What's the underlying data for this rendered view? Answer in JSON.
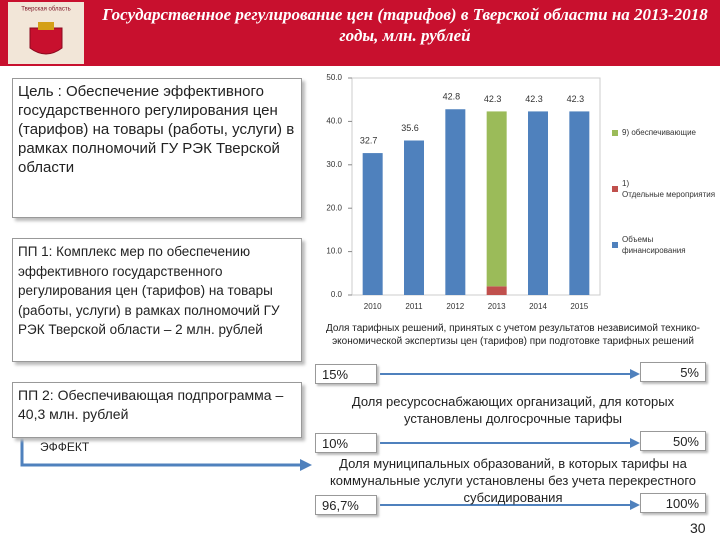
{
  "header": {
    "emblem_label": "Тверская область",
    "title": "Государственное регулирование цен (тарифов) в Тверской области на 2013-2018 годы, млн. рублей"
  },
  "left": {
    "goal": "Цель : Обеспечение эффективного государственного регулирования цен (тарифов) на товары (работы, услуги) в рамках полномочий ГУ РЭК Тверской области",
    "pp1": "ПП 1: Комплекс мер по обеспечению эффективного государственного регулирования цен (тарифов) на товары (работы, услуги) в рамках полномочий ГУ РЭК Тверской области – 2 млн. рублей",
    "pp2": "ПП 2: Обеспечивающая подпрограмма – 40,3 млн. рублей",
    "effect": "ЭФФЕКТ"
  },
  "chart_data": {
    "type": "stacked-bar",
    "categories": [
      "2010",
      "2011",
      "2012",
      "2013",
      "2014",
      "2015"
    ],
    "series": [
      {
        "name": "Объемы финансирования",
        "color": "#4f81bd",
        "values": [
          32.7,
          35.6,
          42.8,
          null,
          42.3,
          42.3
        ]
      },
      {
        "name": "1) Отдельные мероприятия",
        "color": "#c0504d",
        "values": [
          null,
          null,
          null,
          2,
          null,
          null
        ]
      },
      {
        "name": "9) обеспечивающие",
        "color": "#9bbb59",
        "values": [
          null,
          null,
          null,
          40.3,
          null,
          null
        ]
      }
    ],
    "total_labels": [
      32.7,
      35.6,
      42.8,
      42.3,
      42.3,
      42.3
    ],
    "ylim": [
      0,
      50
    ],
    "yticks": [
      {
        "value": 0,
        "label": "0.0"
      },
      {
        "value": 10,
        "label": "10.0"
      },
      {
        "value": 20,
        "label": "20.0"
      },
      {
        "value": 30,
        "label": "30.0"
      },
      {
        "value": 40,
        "label": "40.0"
      },
      {
        "value": 50,
        "label": "50.0"
      }
    ],
    "grid": false,
    "legend": "right"
  },
  "indicators": [
    {
      "text": "Доля тарифных решений, принятых с учетом результатов независимой технико-экономической экспертизы цен (тарифов) при подготовке тарифных решений",
      "from": "15%",
      "to": "5%"
    },
    {
      "text": "Доля ресурсоснабжающих организаций, для которых установлены долгосрочные тарифы",
      "from": "10%",
      "to": "50%"
    },
    {
      "text": "Доля муниципальных образований, в которых тарифы на коммунальные услуги установлены без учета перекрестного субсидирования",
      "from": "96,7%",
      "to": "100%"
    }
  ],
  "page_number": "30"
}
